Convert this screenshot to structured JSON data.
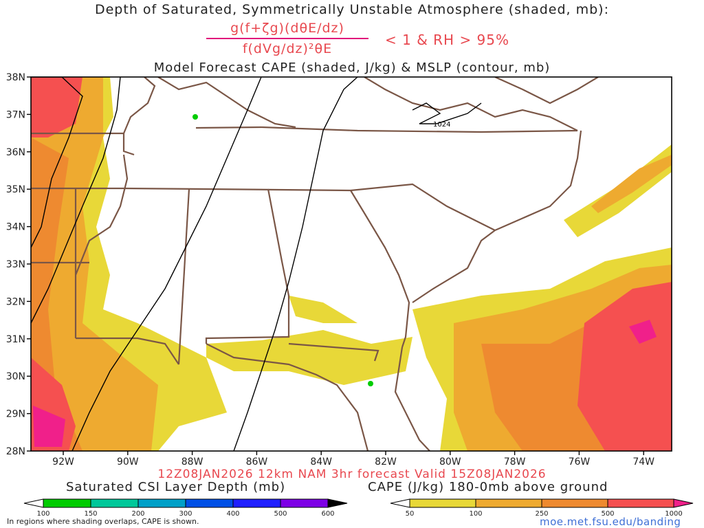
{
  "titles": {
    "line1": "Depth of Saturated, Symmetrically Unstable Atmosphere (shaded, mb):",
    "numerator": "g(f+ζg)(dθE/dz)",
    "denominator": "f(dVg/dz)²θE",
    "condition": "< 1 & RH > 95%",
    "line3": "Model Forecast CAPE (shaded, J/kg) & MSLP (contour, mb)",
    "valid": "12Z08JAN2026 12km NAM 3hr forecast Valid 15Z08JAN2026"
  },
  "axes": {
    "lat_labels": [
      "38N",
      "37N",
      "36N",
      "35N",
      "34N",
      "33N",
      "32N",
      "31N",
      "30N",
      "29N",
      "28N"
    ],
    "lon_labels": [
      "92W",
      "90W",
      "88W",
      "86W",
      "84W",
      "82W",
      "80W",
      "78W",
      "76W",
      "74W"
    ]
  },
  "contours": {
    "label": "1024"
  },
  "colorbars": {
    "csi": {
      "title": "Saturated CSI Layer Depth (mb)",
      "ticks": [
        "100",
        "150",
        "200",
        "300",
        "400",
        "500",
        "600"
      ],
      "colors": [
        "#ffffff",
        "#00cc00",
        "#00c89a",
        "#00a0c8",
        "#0050e6",
        "#2020ff",
        "#7d00e6",
        "#000000"
      ]
    },
    "cape": {
      "title": "CAPE (J/kg) 180-0mb above ground",
      "ticks": [
        "50",
        "100",
        "250",
        "500",
        "1000"
      ],
      "colors": [
        "#ffffff",
        "#e8d838",
        "#eeaa30",
        "#ee8a30",
        "#f55050",
        "#f0208a"
      ]
    }
  },
  "footer": {
    "note": "In regions where shading overlaps, CAPE is shown.",
    "credit": "moe.met.fsu.edu/banding"
  }
}
